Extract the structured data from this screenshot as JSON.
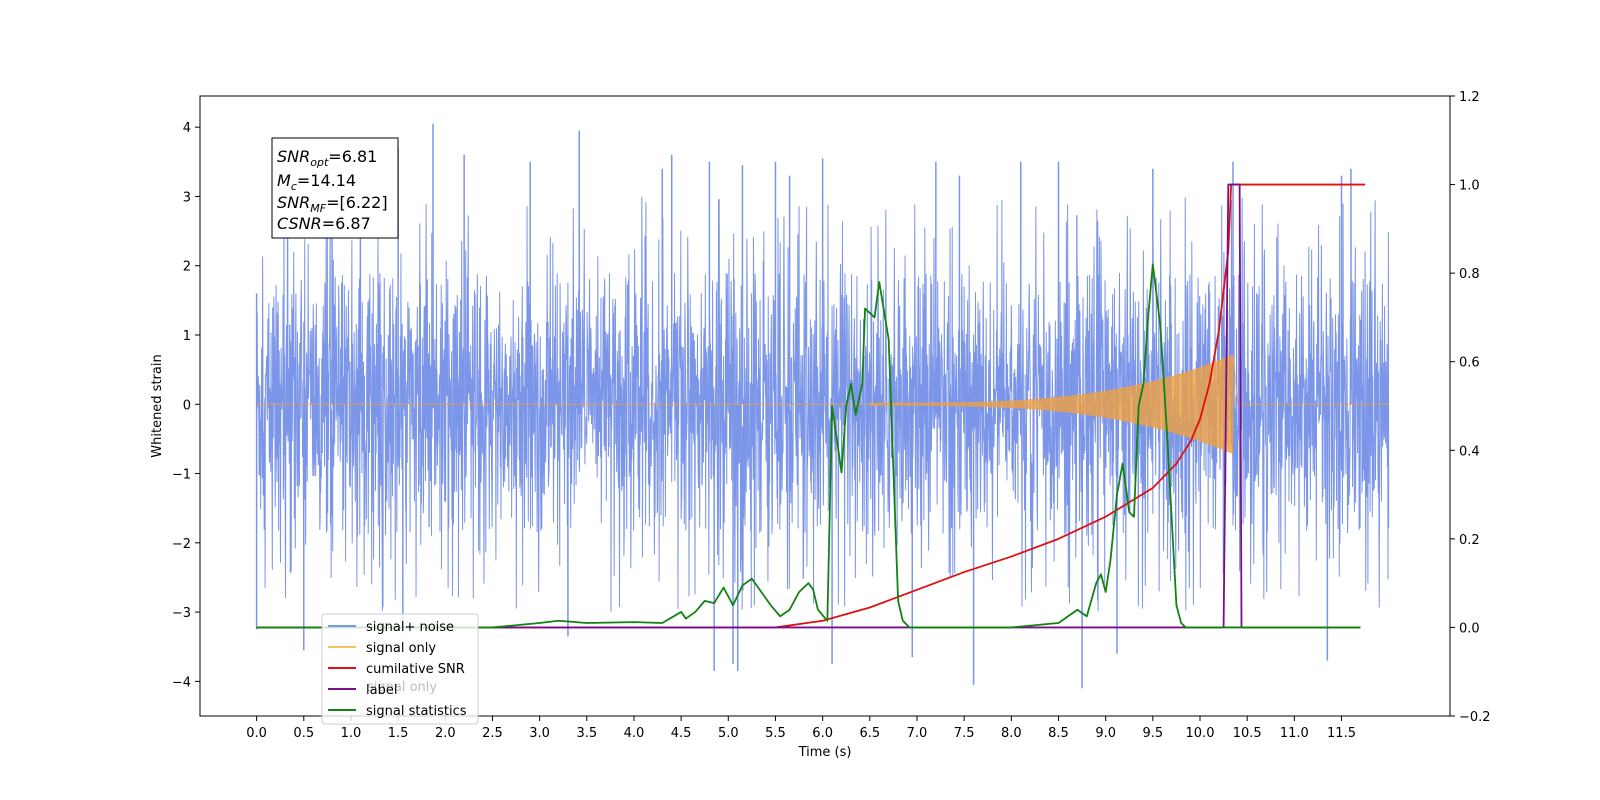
{
  "chart_data": {
    "type": "line",
    "xlabel": "Time (s)",
    "ylabel": "Whitened strain",
    "xlim": [
      -0.6,
      12.65
    ],
    "ylim": [
      -4.5,
      4.45
    ],
    "y2lim": [
      -0.2,
      1.2
    ],
    "x_ticks": [
      "0.0",
      "0.5",
      "1.0",
      "1.5",
      "2.0",
      "2.5",
      "3.0",
      "3.5",
      "4.0",
      "4.5",
      "5.0",
      "5.5",
      "6.0",
      "6.5",
      "7.0",
      "7.5",
      "8.0",
      "8.5",
      "9.0",
      "9.5",
      "10.0",
      "10.5",
      "11.0",
      "11.5"
    ],
    "y_ticks": [
      "4",
      "3",
      "2",
      "1",
      "0",
      "−1",
      "−2",
      "−3",
      "−4"
    ],
    "y2_ticks": [
      "1.2",
      "1.0",
      "0.8",
      "0.6",
      "0.4",
      "0.2",
      "0.0",
      "−0.2"
    ],
    "stats": {
      "snr_opt": {
        "sym": "SNR",
        "sub": "opt",
        "val": "=6.81"
      },
      "mc": {
        "sym": "M",
        "sub": "c",
        "val": "=14.14"
      },
      "snr_mf": {
        "sym": "SNR",
        "sub": "MF",
        "val": "=[6.22]"
      },
      "csnr": {
        "sym": "CSNR",
        "sub": "",
        "val": "=6.87"
      }
    },
    "legend": {
      "placement": "lower-left",
      "entries": [
        "signal+ noise",
        "signal only",
        "cumilative SNR",
        "label",
        "signal statistics"
      ],
      "ghost_text": "signal only"
    },
    "series": [
      {
        "name": "signal+ noise",
        "axis": "left",
        "color": "#7b95e8",
        "x_range": [
          0.0,
          12.0
        ],
        "band": [
          -1.9,
          1.9
        ],
        "spikes": [
          [
            0.0,
            1.6
          ],
          [
            0.0,
            -3.25
          ],
          [
            0.5,
            -3.55
          ],
          [
            0.8,
            2.9
          ],
          [
            1.1,
            3.6
          ],
          [
            1.5,
            3.7
          ],
          [
            1.55,
            -3.3
          ],
          [
            1.87,
            4.05
          ],
          [
            2.2,
            3.6
          ],
          [
            2.9,
            3.5
          ],
          [
            3.3,
            -3.35
          ],
          [
            3.42,
            3.95
          ],
          [
            4.3,
            3.4
          ],
          [
            4.4,
            3.6
          ],
          [
            4.8,
            3.5
          ],
          [
            4.85,
            -3.85
          ],
          [
            5.05,
            -3.75
          ],
          [
            5.1,
            -3.85
          ],
          [
            5.15,
            3.45
          ],
          [
            5.5,
            3.5
          ],
          [
            5.65,
            3.3
          ],
          [
            6.0,
            3.55
          ],
          [
            6.1,
            -3.75
          ],
          [
            6.95,
            -3.65
          ],
          [
            7.2,
            3.5
          ],
          [
            7.45,
            3.3
          ],
          [
            7.6,
            -4.05
          ],
          [
            8.1,
            3.5
          ],
          [
            8.5,
            3.5
          ],
          [
            8.75,
            -4.1
          ],
          [
            9.12,
            -3.6
          ],
          [
            9.5,
            3.4
          ],
          [
            10.35,
            3.5
          ],
          [
            11.35,
            -3.7
          ],
          [
            11.5,
            3.3
          ],
          [
            11.6,
            3.4
          ]
        ]
      },
      {
        "name": "signal only",
        "axis": "left",
        "color": "#f0a040",
        "chirp": {
          "x_start": 6.5,
          "x_peak": 10.35,
          "x_end": 10.4,
          "peak_amplitude": 0.7
        }
      },
      {
        "name": "cumilative SNR",
        "axis": "right",
        "color": "#e01010",
        "x": [
          0.0,
          5.5,
          6.0,
          6.5,
          7.0,
          7.5,
          8.0,
          8.5,
          9.0,
          9.5,
          9.75,
          9.9,
          10.0,
          10.1,
          10.2,
          10.3,
          10.33,
          10.4,
          11.5,
          11.75
        ],
        "y": [
          0.0,
          0.0,
          0.015,
          0.045,
          0.085,
          0.125,
          0.16,
          0.2,
          0.25,
          0.315,
          0.37,
          0.42,
          0.47,
          0.55,
          0.67,
          0.85,
          1.0,
          1.0,
          1.0,
          1.0
        ]
      },
      {
        "name": "label",
        "axis": "right",
        "color": "#7a0f8a",
        "x": [
          0.0,
          10.25,
          10.3,
          10.31,
          10.42,
          10.44,
          11.7
        ],
        "y": [
          0.0,
          0.0,
          1.0,
          1.0,
          1.0,
          0.0,
          0.0
        ]
      },
      {
        "name": "signal statistics",
        "axis": "right",
        "color": "#128212",
        "x": [
          0.0,
          2.5,
          3.0,
          3.2,
          3.5,
          4.0,
          4.3,
          4.5,
          4.55,
          4.65,
          4.75,
          4.85,
          4.95,
          5.05,
          5.15,
          5.25,
          5.35,
          5.45,
          5.55,
          5.65,
          5.75,
          5.85,
          5.9,
          5.95,
          6.05,
          6.1,
          6.2,
          6.25,
          6.3,
          6.35,
          6.42,
          6.45,
          6.55,
          6.6,
          6.7,
          6.8,
          6.85,
          6.92,
          7.0,
          7.5,
          8.0,
          8.5,
          8.7,
          8.8,
          8.9,
          8.95,
          9.0,
          9.05,
          9.12,
          9.18,
          9.25,
          9.3,
          9.35,
          9.4,
          9.45,
          9.5,
          9.58,
          9.65,
          9.75,
          9.8,
          9.85,
          10.0,
          11.5,
          11.7
        ],
        "y": [
          0.0,
          0.0,
          0.01,
          0.015,
          0.01,
          0.012,
          0.01,
          0.035,
          0.02,
          0.035,
          0.06,
          0.055,
          0.09,
          0.05,
          0.095,
          0.11,
          0.08,
          0.05,
          0.025,
          0.04,
          0.08,
          0.1,
          0.085,
          0.04,
          0.015,
          0.5,
          0.35,
          0.5,
          0.55,
          0.48,
          0.55,
          0.72,
          0.7,
          0.78,
          0.65,
          0.06,
          0.015,
          0.0,
          0.0,
          0.0,
          0.0,
          0.01,
          0.04,
          0.025,
          0.1,
          0.12,
          0.08,
          0.15,
          0.3,
          0.37,
          0.26,
          0.25,
          0.5,
          0.55,
          0.7,
          0.82,
          0.68,
          0.44,
          0.05,
          0.01,
          0.0,
          0.0,
          0.0,
          0.0
        ]
      }
    ]
  }
}
